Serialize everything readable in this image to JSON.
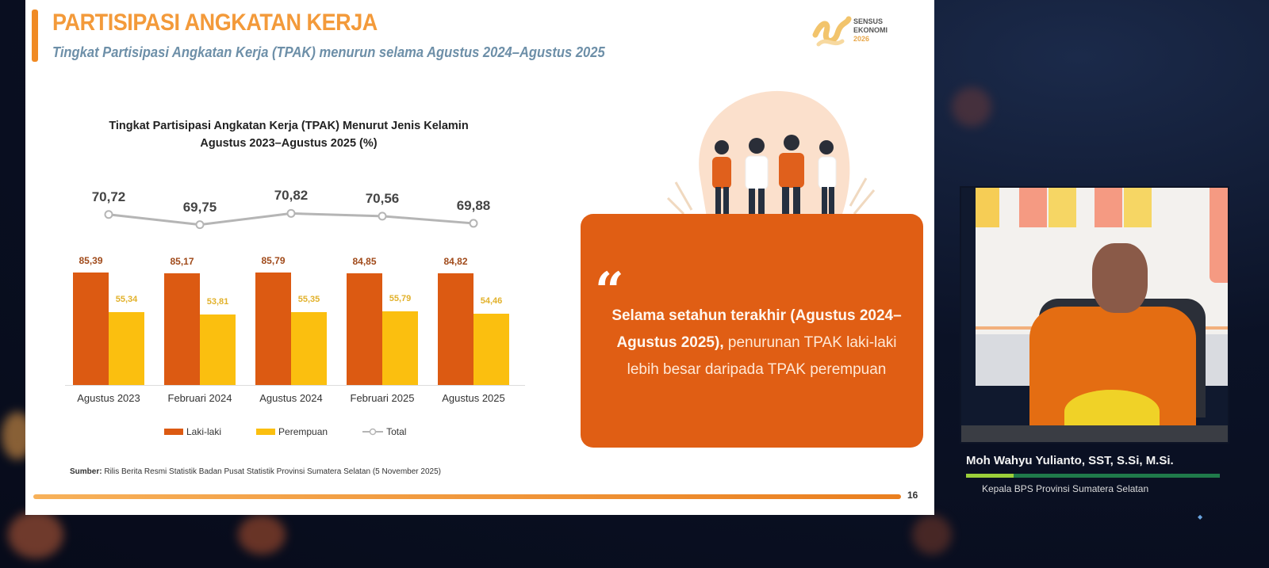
{
  "slide": {
    "title": "PARTISIPASI ANGKATAN KERJA",
    "subtitle": "Tingkat Partisipasi Angkatan Kerja (TPAK) menurun selama Agustus 2024–Agustus 2025",
    "logo": {
      "line1": "SENSUS",
      "line2": "EKONOMI",
      "year": "2026"
    },
    "page_number": "16",
    "source_label": "Sumber:",
    "source_text": "Rilis Berita Resmi Statistik Badan Pusat Statistik Provinsi Sumatera Selatan (5 November 2025)",
    "quote": {
      "mark": "“",
      "bold_text": "Selama setahun terakhir (Agustus 2024–Agustus 2025),",
      "normal_text": " penurunan TPAK laki-laki lebih besar daripada TPAK perempuan"
    }
  },
  "chart_data": {
    "type": "bar",
    "title": "Tingkat Partisipasi Angkatan Kerja (TPAK) Menurut Jenis Kelamin",
    "subtitle": "Agustus 2023–Agustus 2025 (%)",
    "xlabel": "",
    "ylabel": "",
    "categories": [
      "Agustus 2023",
      "Februari 2024",
      "Agustus 2024",
      "Februari 2025",
      "Agustus 2025"
    ],
    "series": [
      {
        "name": "Laki-laki",
        "type": "bar",
        "color": "#dc5a12",
        "values": [
          85.39,
          85.17,
          85.79,
          84.85,
          84.82
        ],
        "labels": [
          "85,39",
          "85,17",
          "85,79",
          "84,85",
          "84,82"
        ]
      },
      {
        "name": "Perempuan",
        "type": "bar",
        "color": "#fbbf0f",
        "values": [
          55.34,
          53.81,
          55.35,
          55.79,
          54.46
        ],
        "labels": [
          "55,34",
          "53,81",
          "55,35",
          "55,79",
          "54,46"
        ]
      },
      {
        "name": "Total",
        "type": "line",
        "color": "#b5b5b5",
        "values": [
          70.72,
          69.75,
          70.82,
          70.56,
          69.88
        ],
        "labels": [
          "70,72",
          "69,75",
          "70,82",
          "70,56",
          "69,88"
        ]
      }
    ],
    "legend": [
      "Laki-laki",
      "Perempuan",
      "Total"
    ],
    "legend_position": "bottom",
    "grid": false
  },
  "presenter": {
    "name": "Moh Wahyu Yulianto, SST, S.Si, M.Si.",
    "role": "Kepala BPS Provinsi Sumatera Selatan"
  },
  "colors": {
    "accent_orange": "#e05e14",
    "title_orange": "#f39a3a",
    "bar_male": "#dc5a12",
    "bar_female": "#fbbf0f",
    "line_total": "#b5b5b5"
  }
}
